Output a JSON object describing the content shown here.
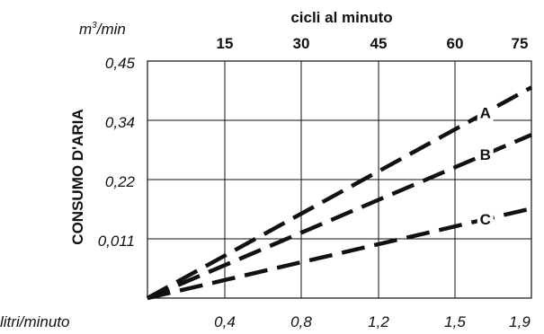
{
  "chart_data": {
    "type": "line",
    "units_label_top_left": "m³/min",
    "top_axis_title": "cicli al minuto",
    "top_axis_ticks": [
      "15",
      "30",
      "45",
      "60",
      "75"
    ],
    "left_axis_title": "CONSUMO D'ARIA",
    "left_axis_ticks": [
      "0,45",
      "0,34",
      "0,22",
      "0,011"
    ],
    "bottom_axis_title": "litri/minuto",
    "bottom_axis_ticks": [
      "0,4",
      "0,8",
      "1,2",
      "1,5",
      "1,9"
    ],
    "x": [
      0,
      75
    ],
    "series": [
      {
        "name": "A",
        "values": [
          0,
          0.4
        ]
      },
      {
        "name": "B",
        "values": [
          0,
          0.31
        ]
      },
      {
        "name": "C",
        "values": [
          0,
          0.17
        ]
      }
    ],
    "xlim": [
      0,
      75
    ],
    "ylim": [
      0,
      0.45
    ],
    "grid": true,
    "series_labels_position": "right-end-inline"
  }
}
